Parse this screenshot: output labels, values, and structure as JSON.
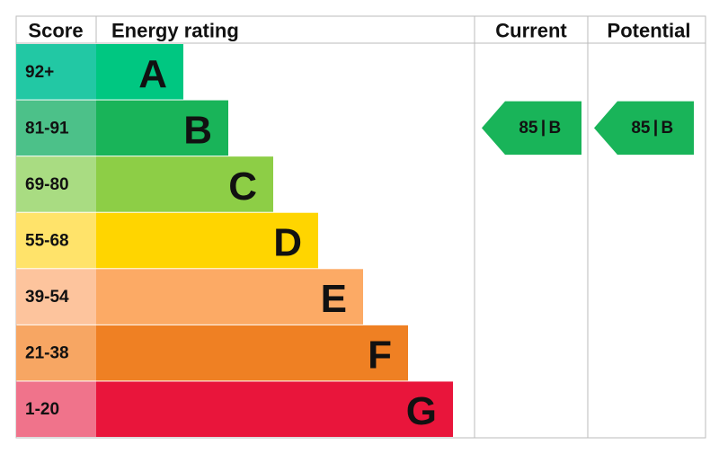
{
  "header": {
    "score": "Score",
    "energy_rating": "Energy rating",
    "current": "Current",
    "potential": "Potential"
  },
  "bands": [
    {
      "score": "92+",
      "letter": "A",
      "color": "#00c781",
      "score_color": "#22c8a4"
    },
    {
      "score": "81-91",
      "letter": "B",
      "color": "#19b459",
      "score_color": "#4cc189"
    },
    {
      "score": "69-80",
      "letter": "C",
      "color": "#8dce46",
      "score_color": "#a9dc82"
    },
    {
      "score": "55-68",
      "letter": "D",
      "color": "#ffd500",
      "score_color": "#ffe36a"
    },
    {
      "score": "39-54",
      "letter": "E",
      "color": "#fcaa65",
      "score_color": "#fdc49d"
    },
    {
      "score": "21-38",
      "letter": "F",
      "color": "#ef8023",
      "score_color": "#f7a663"
    },
    {
      "score": "1-20",
      "letter": "G",
      "color": "#e9153b",
      "score_color": "#f0738b"
    }
  ],
  "current": {
    "score": 85,
    "band": "B"
  },
  "potential": {
    "score": 85,
    "band": "B"
  }
}
